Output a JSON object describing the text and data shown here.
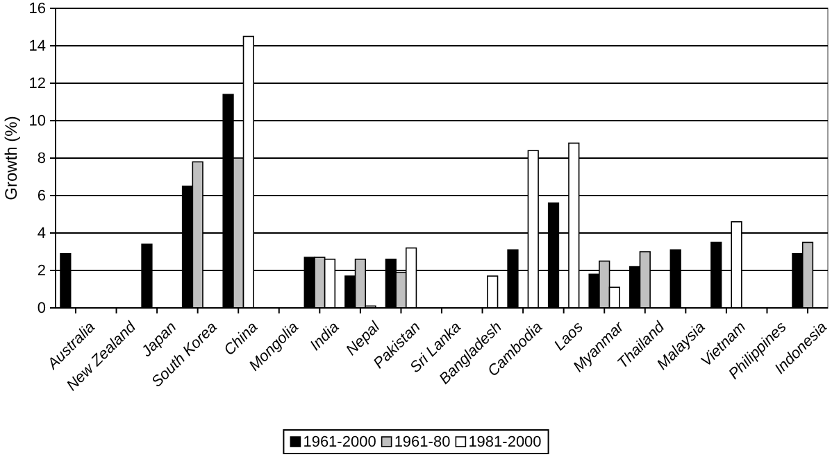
{
  "chart_data": {
    "type": "bar",
    "ylabel": "Growth (%)",
    "categories": [
      "Australia",
      "New Zealand",
      "Japan",
      "South Korea",
      "China",
      "Mongolia",
      "India",
      "Nepal",
      "Pakistan",
      "Sri Lanka",
      "Bangladesh",
      "Cambodia",
      "Laos",
      "Myanmar",
      "Thailand",
      "Malaysia",
      "Vietnam",
      "Philippines",
      "Indonesia"
    ],
    "series": [
      {
        "name": "1961-2000",
        "color": "#000000",
        "values": [
          2.9,
          null,
          3.4,
          6.5,
          11.4,
          null,
          2.7,
          1.7,
          2.6,
          null,
          null,
          3.1,
          5.6,
          1.8,
          2.2,
          3.1,
          3.5,
          null,
          2.9
        ]
      },
      {
        "name": "1961-80",
        "color": "#c0c0c0",
        "values": [
          null,
          null,
          null,
          7.8,
          8.0,
          null,
          2.7,
          2.6,
          1.9,
          null,
          null,
          null,
          null,
          2.5,
          3.0,
          null,
          null,
          null,
          3.5
        ]
      },
      {
        "name": "1981-2000",
        "color": "#ffffff",
        "values": [
          null,
          null,
          null,
          null,
          14.5,
          null,
          2.6,
          0.1,
          3.2,
          null,
          1.7,
          8.4,
          8.8,
          1.1,
          null,
          null,
          4.6,
          null,
          null
        ]
      }
    ],
    "ylim": [
      0,
      16
    ],
    "yticks": [
      0,
      2,
      4,
      6,
      8,
      10,
      12,
      14,
      16
    ],
    "grid": "y",
    "legend": "bottom"
  }
}
